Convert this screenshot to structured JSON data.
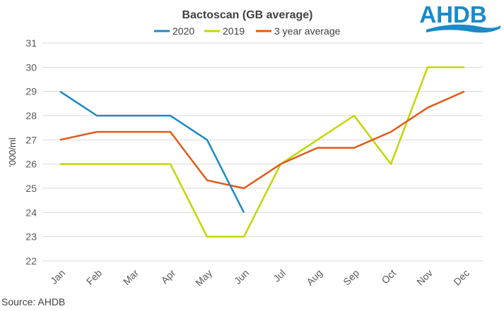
{
  "logo_text": "AHDB",
  "source": "Source: AHDB",
  "chart_data": {
    "type": "line",
    "title": "Bactoscan (GB average)",
    "xlabel": "",
    "ylabel": "'000/ml",
    "ylim": [
      22,
      31
    ],
    "yticks": [
      "22",
      "23",
      "24",
      "25",
      "26",
      "27",
      "28",
      "29",
      "30",
      "31"
    ],
    "grid": true,
    "legend": "top",
    "categories": [
      "Jan",
      "Feb",
      "Mar",
      "Apr",
      "May",
      "Jun",
      "Jul",
      "Aug",
      "Sep",
      "Oct",
      "Nov",
      "Dec"
    ],
    "series": [
      {
        "name": "2020",
        "color": "#1a8ac8",
        "values": [
          29,
          28,
          28,
          28,
          27,
          24,
          null,
          null,
          null,
          null,
          null,
          null
        ]
      },
      {
        "name": "2019",
        "color": "#c4d600",
        "values": [
          26,
          26,
          26,
          26,
          23,
          23,
          26,
          27,
          28,
          26,
          30,
          30
        ]
      },
      {
        "name": "3 year average",
        "color": "#e05a1c",
        "values": [
          27,
          27.33,
          27.33,
          27.33,
          25.33,
          25,
          26,
          26.67,
          26.67,
          27.33,
          28.33,
          29
        ]
      }
    ]
  }
}
